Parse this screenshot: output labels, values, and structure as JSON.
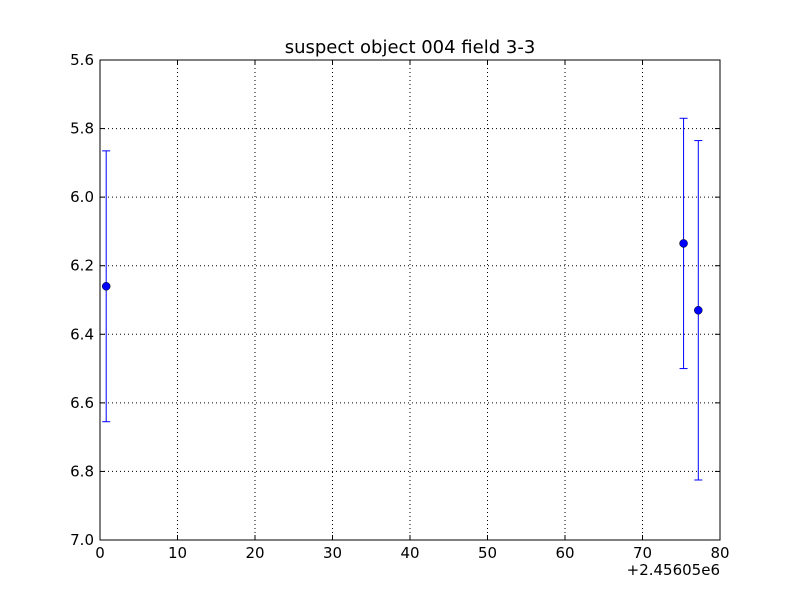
{
  "chart_data": {
    "type": "scatter",
    "title": "suspect object 004 field 3-3",
    "xlabel": "",
    "ylabel": "",
    "x_offset_label": "+2.45605e6",
    "xlim": [
      0,
      80
    ],
    "ylim": [
      7.0,
      5.6
    ],
    "y_inverted": true,
    "x_ticks": [
      "0",
      "10",
      "20",
      "30",
      "40",
      "50",
      "60",
      "70",
      "80"
    ],
    "x_tick_values": [
      0,
      10,
      20,
      30,
      40,
      50,
      60,
      70,
      80
    ],
    "y_ticks": [
      "5.6",
      "5.8",
      "6.0",
      "6.2",
      "6.4",
      "6.6",
      "6.8",
      "7.0"
    ],
    "y_tick_values": [
      5.6,
      5.8,
      6.0,
      6.2,
      6.4,
      6.6,
      6.8,
      7.0
    ],
    "grid": true,
    "series": [
      {
        "x": [
          0.8,
          75.3,
          77.2
        ],
        "y": [
          6.26,
          6.135,
          6.33
        ],
        "yerr": [
          0.395,
          0.365,
          0.495
        ]
      }
    ],
    "colors": {
      "series": "#0000ff",
      "grid": "#000000",
      "axes": "#000000"
    }
  }
}
